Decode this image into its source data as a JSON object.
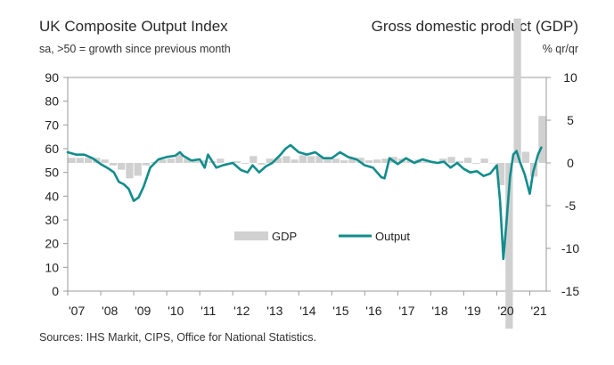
{
  "titles": {
    "left": "UK Composite Output Index",
    "left_sub": "sa, >50 = growth since previous month",
    "right": "Gross domestic product (GDP)",
    "right_sub": "% qr/qr"
  },
  "source": "Sources: IHS Markit, CIPS, Office for National Statistics.",
  "colors": {
    "output": "#128c8c",
    "gdp": "#d0d0d0"
  },
  "chart_data": {
    "type": "bar+line",
    "x_labels": [
      "'07",
      "'08",
      "'09",
      "'10",
      "'11",
      "'12",
      "'13",
      "'14",
      "'15",
      "'16",
      "'17",
      "'18",
      "'19",
      "'20",
      "'21"
    ],
    "left_axis": {
      "ylim": [
        0,
        90
      ],
      "ticks": [
        "0",
        "10",
        "20",
        "30",
        "40",
        "50",
        "60",
        "70",
        "80",
        "90"
      ]
    },
    "right_axis": {
      "ylim": [
        -15,
        10
      ],
      "ticks": [
        "-15",
        "-10",
        "-5",
        "0",
        "5",
        "10"
      ]
    },
    "legend": {
      "gdp": "GDP",
      "output": "Output"
    },
    "gdp": {
      "name": "GDP",
      "values": [
        0.6,
        0.6,
        0.6,
        0.6,
        0.4,
        -0.3,
        -0.8,
        -1.8,
        -1.5,
        -0.3,
        0.1,
        0.4,
        0.5,
        1.0,
        0.5,
        0.2,
        0.3,
        0.2,
        0.5,
        0.0,
        0.2,
        -0.1,
        0.8,
        -0.2,
        0.5,
        0.6,
        0.8,
        0.4,
        0.9,
        0.8,
        0.8,
        0.7,
        0.5,
        0.3,
        0.5,
        0.6,
        0.3,
        0.4,
        0.5,
        0.7,
        0.5,
        0.3,
        0.4,
        0.3,
        0.1,
        0.5,
        0.7,
        0.2,
        0.6,
        -0.1,
        0.5,
        0.0,
        -2.6,
        -19.4,
        16.9,
        1.3,
        -1.6,
        5.5
      ]
    },
    "output": {
      "name": "Output",
      "x": [
        2007.0,
        2007.25,
        2007.5,
        2007.75,
        2008.0,
        2008.25,
        2008.4,
        2008.55,
        2008.7,
        2008.85,
        2009.0,
        2009.15,
        2009.3,
        2009.5,
        2009.75,
        2010.0,
        2010.25,
        2010.4,
        2010.5,
        2010.75,
        2011.0,
        2011.15,
        2011.25,
        2011.5,
        2011.7,
        2012.0,
        2012.25,
        2012.45,
        2012.6,
        2012.8,
        2013.0,
        2013.2,
        2013.45,
        2013.6,
        2013.75,
        2014.0,
        2014.25,
        2014.5,
        2014.75,
        2015.0,
        2015.25,
        2015.5,
        2015.75,
        2016.0,
        2016.25,
        2016.5,
        2016.6,
        2016.75,
        2017.0,
        2017.25,
        2017.5,
        2017.75,
        2018.0,
        2018.2,
        2018.4,
        2018.6,
        2018.8,
        2019.0,
        2019.2,
        2019.4,
        2019.6,
        2019.8,
        2020.0,
        2020.1,
        2020.2,
        2020.3,
        2020.4,
        2020.5,
        2020.6,
        2020.7,
        2020.85,
        2021.0,
        2021.1,
        2021.25,
        2021.35
      ],
      "values": [
        58.5,
        57.5,
        57.5,
        56.0,
        53.5,
        51.5,
        50.0,
        46.0,
        45.0,
        43.0,
        38.0,
        39.5,
        44.0,
        52.0,
        55.5,
        56.5,
        57.0,
        58.5,
        57.0,
        55.0,
        55.5,
        52.0,
        57.5,
        52.0,
        53.0,
        54.0,
        51.0,
        50.0,
        53.0,
        50.0,
        52.5,
        54.0,
        57.5,
        60.0,
        61.5,
        58.5,
        57.5,
        58.5,
        56.0,
        56.0,
        58.5,
        56.5,
        55.5,
        53.0,
        52.0,
        48.0,
        47.5,
        56.0,
        53.5,
        56.0,
        54.0,
        55.5,
        54.5,
        54.0,
        54.5,
        52.0,
        54.0,
        51.5,
        50.0,
        50.5,
        48.5,
        49.5,
        53.0,
        38.0,
        13.5,
        30.0,
        48.0,
        57.5,
        59.0,
        54.5,
        49.0,
        41.0,
        50.0,
        57.5,
        60.5
      ]
    }
  }
}
